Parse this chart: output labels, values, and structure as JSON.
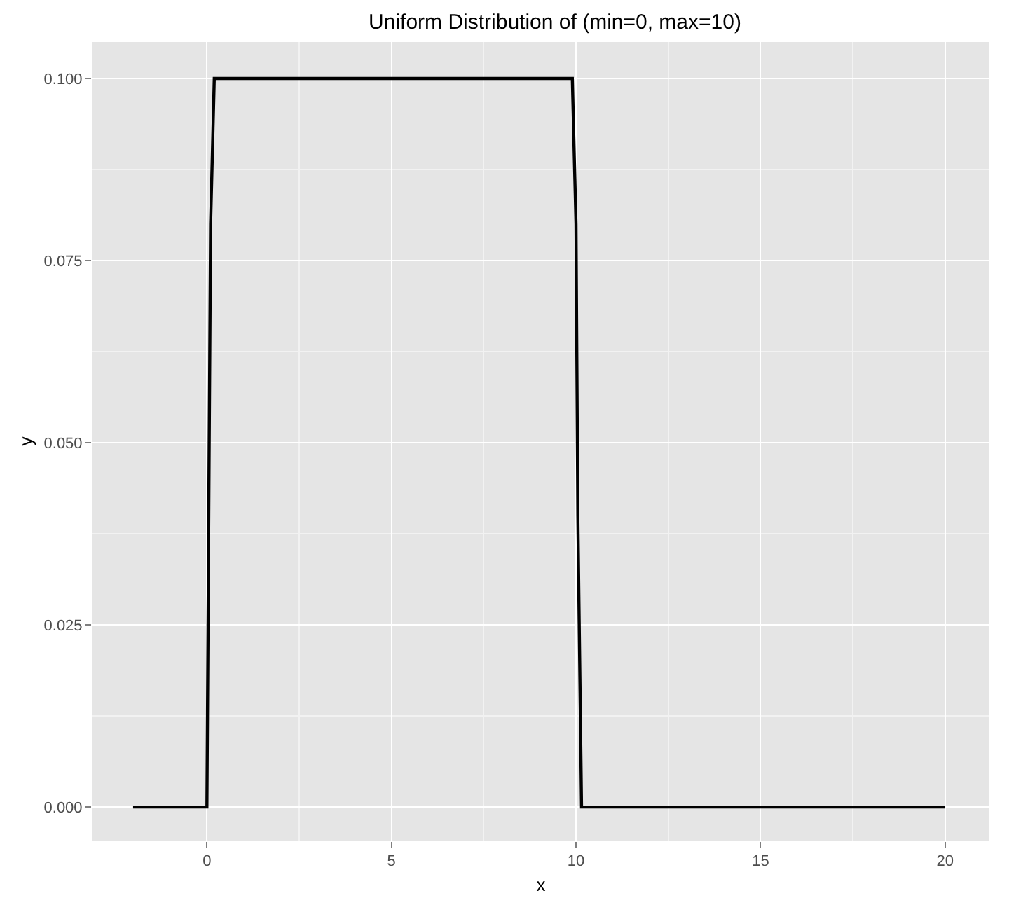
{
  "chart_data": {
    "type": "line",
    "title": "Uniform Distribution of (min=0, max=10)",
    "xlabel": "x",
    "ylabel": "y",
    "x": [
      -2,
      0,
      0.05,
      0.1,
      0.2,
      9.9,
      10.0,
      10.05,
      10.15,
      20
    ],
    "series": [
      {
        "color": "#000000",
        "values": [
          0,
          0,
          0.04,
          0.08,
          0.1,
          0.1,
          0.08,
          0.04,
          0,
          0
        ]
      }
    ],
    "xlim": [
      -3.1,
      21.2
    ],
    "ylim": [
      -0.0046,
      0.105
    ],
    "xticks": [
      0,
      5,
      10,
      15,
      20
    ],
    "yticks": [
      {
        "value": 0,
        "label": "0.000"
      },
      {
        "value": 0.025,
        "label": "0.025"
      },
      {
        "value": 0.05,
        "label": "0.050"
      },
      {
        "value": 0.075,
        "label": "0.075"
      },
      {
        "value": 0.1,
        "label": "0.100"
      }
    ],
    "grid": true,
    "marker": "none",
    "line_style": "solid"
  }
}
